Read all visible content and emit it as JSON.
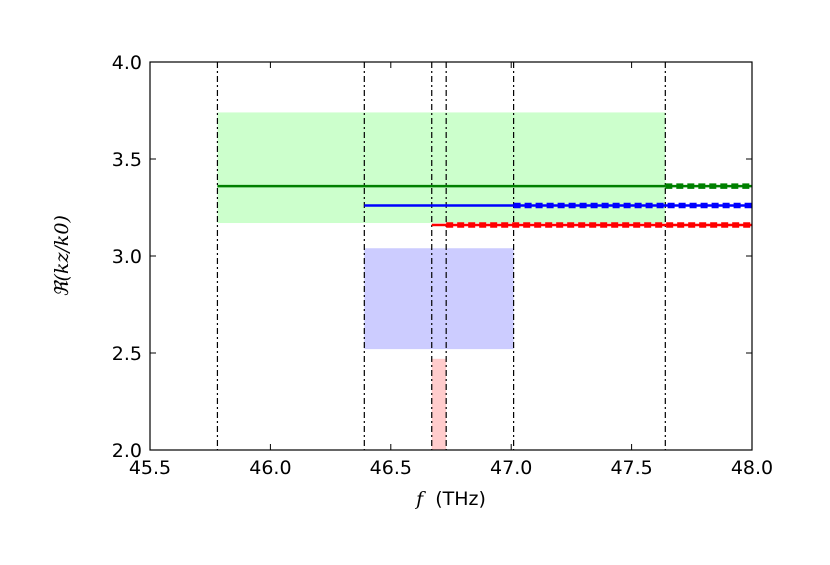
{
  "chart_data": {
    "type": "line",
    "xlabel": {
      "var": "f",
      "unit": "(THz)"
    },
    "ylabel": "ℜ(kz/k0)",
    "xlim": [
      45.5,
      48.0
    ],
    "ylim": [
      2.0,
      4.0
    ],
    "x_ticks": [
      "45.5",
      "46.0",
      "46.5",
      "47.0",
      "47.5",
      "48.0"
    ],
    "y_ticks": [
      "2.0",
      "2.5",
      "3.0",
      "3.5",
      "4.0"
    ],
    "grid": false,
    "vlines": [
      45.78,
      46.39,
      46.67,
      46.73,
      47.01,
      47.64
    ],
    "bands": [
      {
        "color": "#ccffcc",
        "x": [
          45.78,
          47.64
        ],
        "y": [
          3.17,
          3.74
        ]
      },
      {
        "color": "#ccccff",
        "x": [
          46.39,
          47.01
        ],
        "y": [
          2.52,
          3.04
        ]
      },
      {
        "color": "#ffcccc",
        "x": [
          46.67,
          46.73
        ],
        "y": [
          2.0,
          2.47
        ]
      }
    ],
    "series": [
      {
        "color": "#008000",
        "y": 3.36,
        "solid": [
          45.78,
          47.64
        ],
        "dashed": [
          47.64,
          48.0
        ]
      },
      {
        "color": "#0000ff",
        "y": 3.26,
        "solid": [
          46.39,
          47.01
        ],
        "dashed": [
          47.01,
          48.0
        ]
      },
      {
        "color": "#ff0000",
        "y": 3.16,
        "solid": [
          46.67,
          46.73
        ],
        "dashed": [
          46.73,
          48.0
        ]
      }
    ]
  }
}
